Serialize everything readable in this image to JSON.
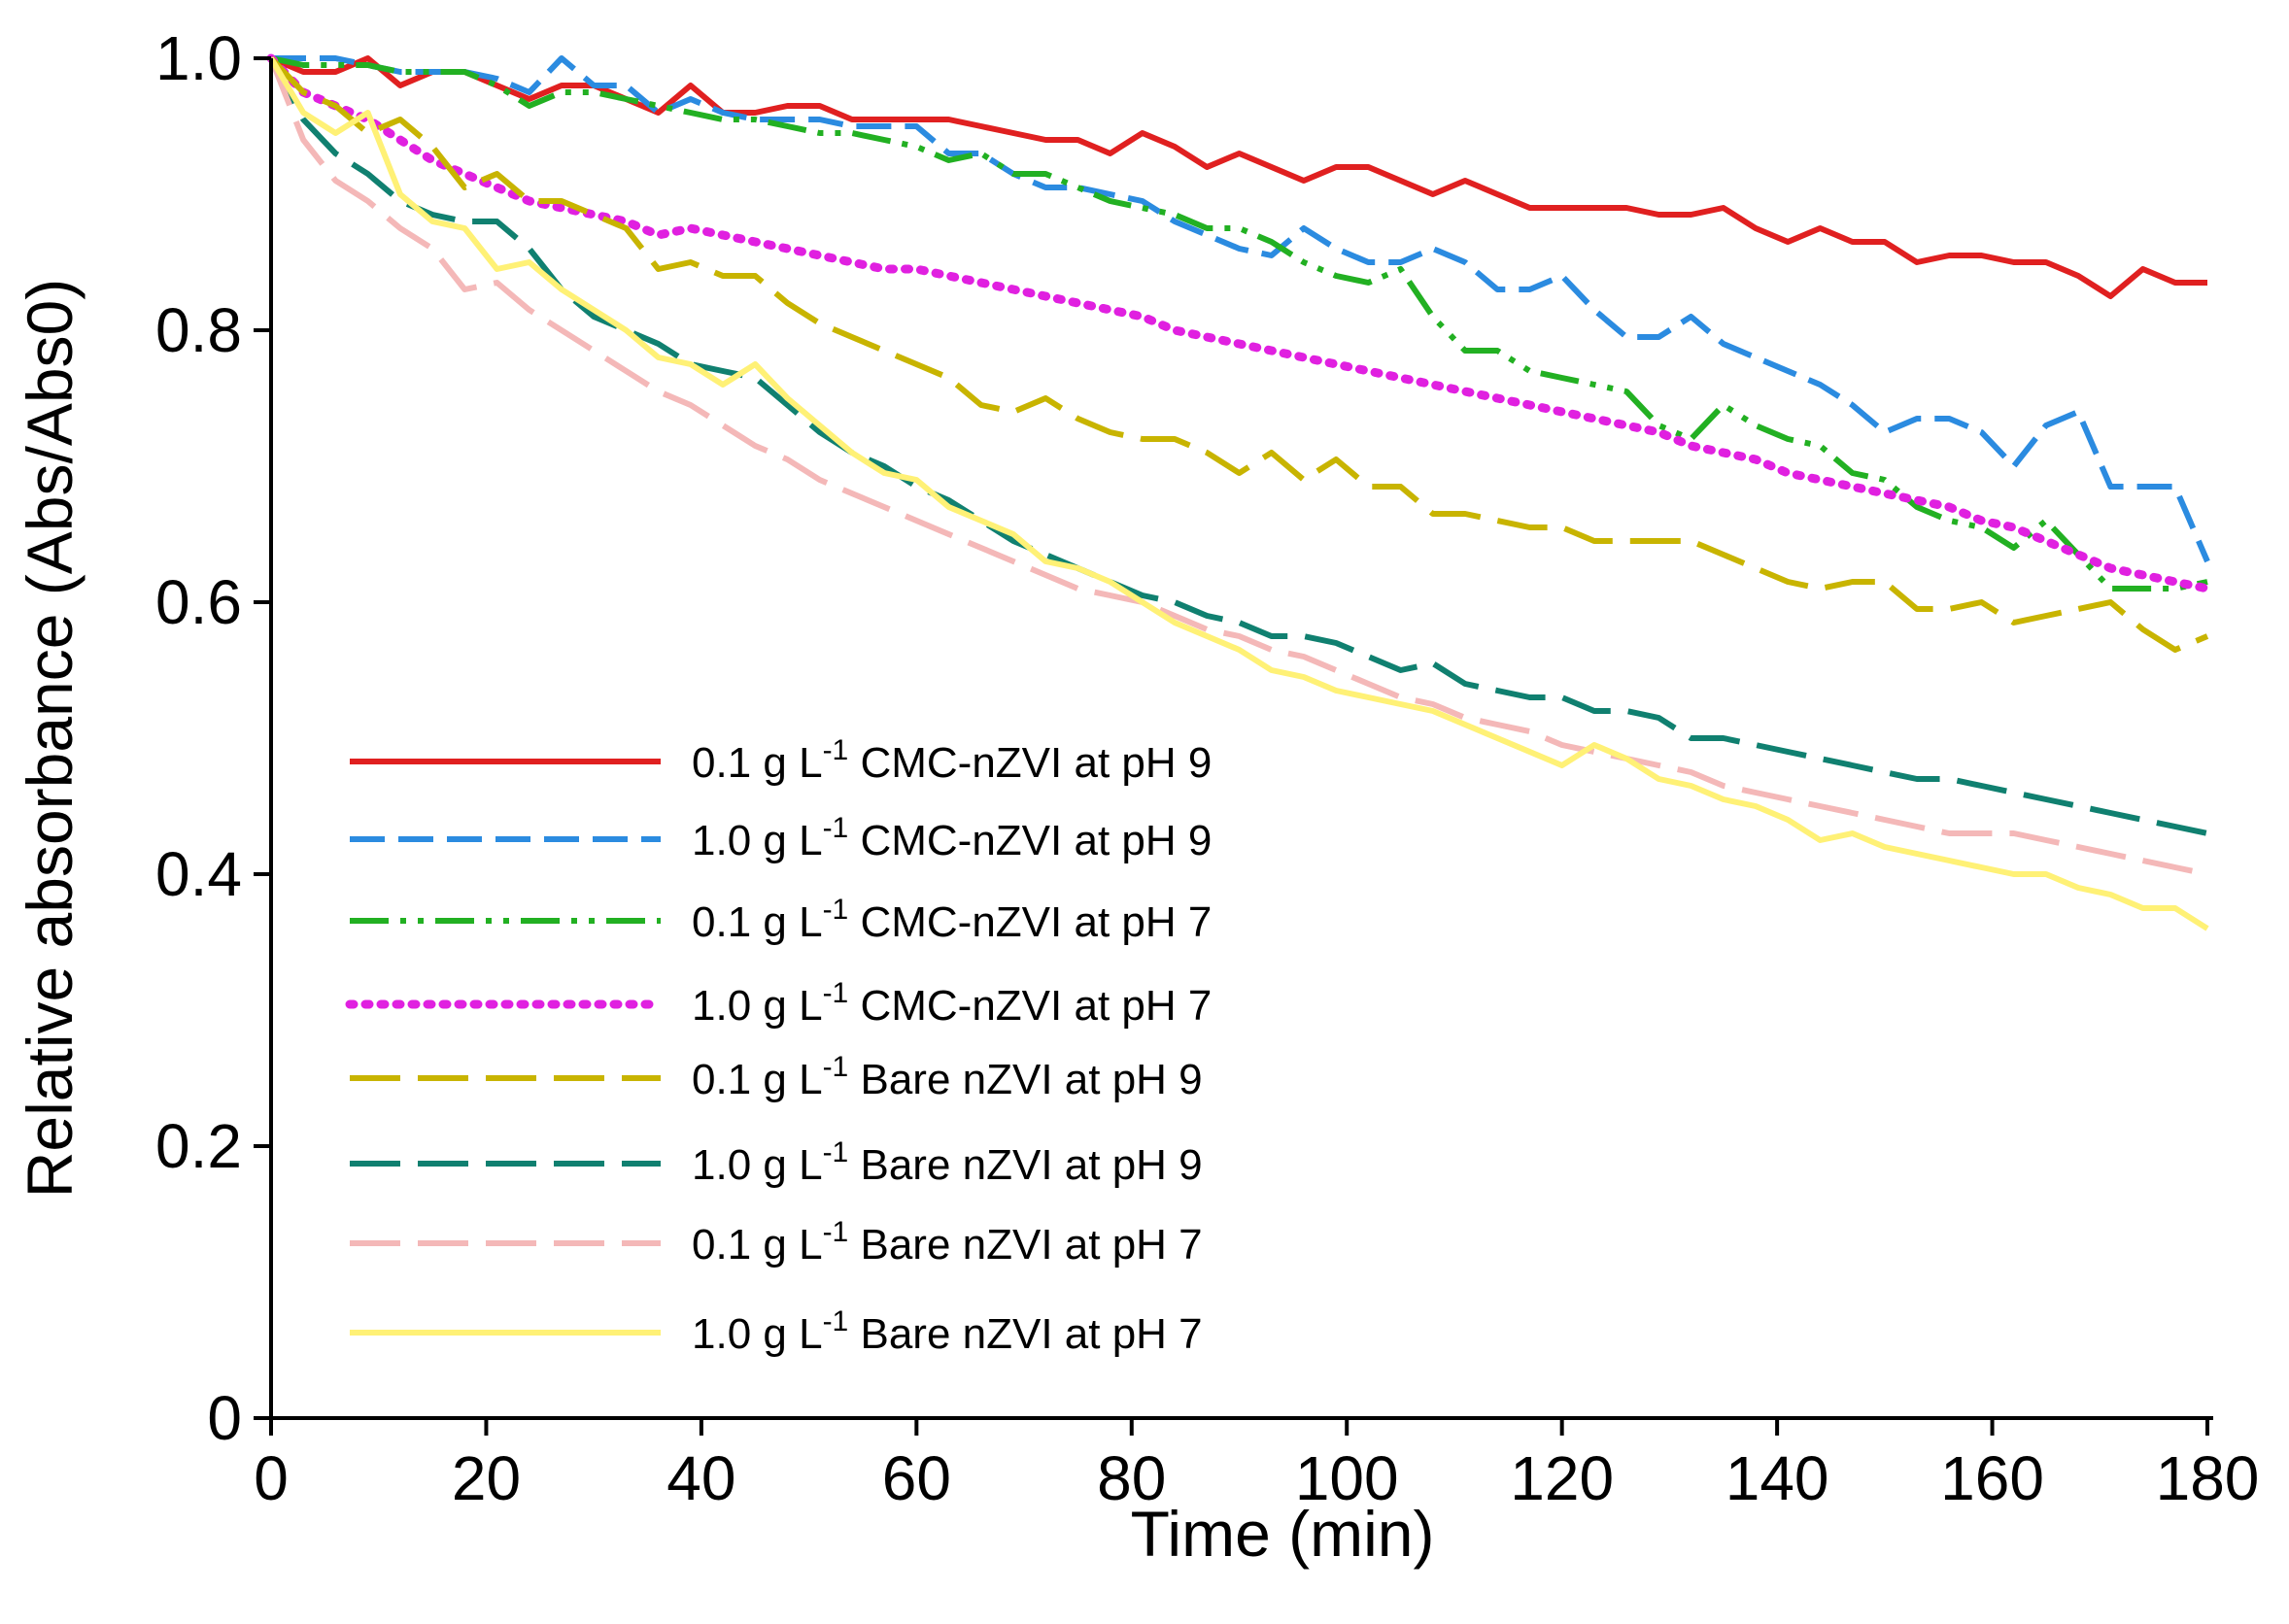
{
  "chart_data": {
    "type": "line",
    "title": "",
    "xlabel": "Time (min)",
    "ylabel": "Relative absorbance (Abs/Abs0)",
    "xlim": [
      0,
      180
    ],
    "ylim": [
      0,
      1.0
    ],
    "xticks": [
      0,
      20,
      40,
      60,
      80,
      100,
      120,
      140,
      160,
      180
    ],
    "xtick_labels": [
      "0",
      "20",
      "40",
      "60",
      "80",
      "100",
      "120",
      "140",
      "160",
      "180"
    ],
    "yticks": [
      0,
      0.2,
      0.4,
      0.6,
      0.8,
      1.0
    ],
    "ytick_labels": [
      "0",
      "0.2",
      "0.4",
      "0.6",
      "0.8",
      "1.0"
    ],
    "grid": false,
    "legend_position": "lower-left",
    "series": [
      {
        "name": "0.1 g L-1 CMC-nZVI at pH 9",
        "label_pre": "0.1 g L",
        "label_sup": "-1",
        "label_post": " CMC-nZVI at pH 9",
        "color": "#e02020",
        "dash": "solid",
        "x": [
          0,
          3,
          6,
          9,
          12,
          15,
          18,
          21,
          24,
          27,
          30,
          33,
          36,
          39,
          42,
          45,
          48,
          51,
          54,
          57,
          60,
          63,
          66,
          69,
          72,
          75,
          78,
          81,
          84,
          87,
          90,
          93,
          96,
          99,
          102,
          105,
          108,
          111,
          114,
          117,
          120,
          123,
          126,
          129,
          132,
          135,
          138,
          141,
          144,
          147,
          150,
          153,
          156,
          159,
          162,
          165,
          168,
          171,
          174,
          177,
          180
        ],
        "y": [
          1.0,
          0.99,
          0.99,
          1.0,
          0.98,
          0.99,
          0.99,
          0.98,
          0.97,
          0.98,
          0.98,
          0.97,
          0.96,
          0.98,
          0.96,
          0.96,
          0.965,
          0.965,
          0.955,
          0.955,
          0.955,
          0.955,
          0.95,
          0.945,
          0.94,
          0.94,
          0.93,
          0.945,
          0.935,
          0.92,
          0.93,
          0.92,
          0.91,
          0.92,
          0.92,
          0.91,
          0.9,
          0.91,
          0.9,
          0.89,
          0.89,
          0.89,
          0.89,
          0.885,
          0.885,
          0.89,
          0.875,
          0.865,
          0.875,
          0.865,
          0.865,
          0.85,
          0.855,
          0.855,
          0.85,
          0.85,
          0.84,
          0.825,
          0.845,
          0.835,
          0.835
        ]
      },
      {
        "name": "1.0 g L-1 CMC-nZVI at pH 9",
        "label_pre": "1.0 g L",
        "label_sup": "-1",
        "label_post": " CMC-nZVI at pH 9",
        "color": "#2b8be0",
        "dash": "dash",
        "x": [
          0,
          3,
          6,
          9,
          12,
          15,
          18,
          21,
          24,
          27,
          30,
          33,
          36,
          39,
          42,
          45,
          48,
          51,
          54,
          57,
          60,
          63,
          66,
          69,
          72,
          75,
          78,
          81,
          84,
          87,
          90,
          93,
          96,
          99,
          102,
          105,
          108,
          111,
          114,
          117,
          120,
          123,
          126,
          129,
          132,
          135,
          138,
          141,
          144,
          147,
          150,
          153,
          156,
          159,
          162,
          165,
          168,
          171,
          174,
          177,
          180
        ],
        "y": [
          1.0,
          1.0,
          1.0,
          0.995,
          0.99,
          0.99,
          0.99,
          0.985,
          0.975,
          1.0,
          0.98,
          0.98,
          0.96,
          0.97,
          0.96,
          0.955,
          0.955,
          0.955,
          0.95,
          0.95,
          0.95,
          0.93,
          0.93,
          0.915,
          0.905,
          0.905,
          0.9,
          0.895,
          0.88,
          0.87,
          0.86,
          0.855,
          0.875,
          0.86,
          0.85,
          0.85,
          0.86,
          0.85,
          0.83,
          0.83,
          0.84,
          0.815,
          0.795,
          0.795,
          0.81,
          0.79,
          0.78,
          0.77,
          0.76,
          0.745,
          0.725,
          0.735,
          0.735,
          0.725,
          0.7,
          0.73,
          0.74,
          0.685,
          0.685,
          0.685,
          0.63
        ]
      },
      {
        "name": "0.1 g L-1 CMC-nZVI at pH 7",
        "label_pre": "0.1 g L",
        "label_sup": "-1",
        "label_post": " CMC-nZVI at pH 7",
        "color": "#22b022",
        "dash": "dashdotdot",
        "x": [
          0,
          3,
          6,
          9,
          12,
          15,
          18,
          21,
          24,
          27,
          30,
          33,
          36,
          39,
          42,
          45,
          48,
          51,
          54,
          57,
          60,
          63,
          66,
          69,
          72,
          75,
          78,
          81,
          84,
          87,
          90,
          93,
          96,
          99,
          102,
          105,
          108,
          111,
          114,
          117,
          120,
          123,
          126,
          129,
          132,
          135,
          138,
          141,
          144,
          147,
          150,
          153,
          156,
          159,
          162,
          165,
          168,
          171,
          174,
          177,
          180
        ],
        "y": [
          1.0,
          0.995,
          0.995,
          0.995,
          0.99,
          0.99,
          0.99,
          0.98,
          0.965,
          0.975,
          0.975,
          0.97,
          0.965,
          0.96,
          0.955,
          0.955,
          0.95,
          0.945,
          0.945,
          0.94,
          0.935,
          0.925,
          0.93,
          0.915,
          0.915,
          0.905,
          0.895,
          0.89,
          0.885,
          0.875,
          0.875,
          0.865,
          0.85,
          0.84,
          0.835,
          0.845,
          0.81,
          0.785,
          0.785,
          0.77,
          0.765,
          0.76,
          0.755,
          0.73,
          0.72,
          0.745,
          0.73,
          0.72,
          0.715,
          0.695,
          0.69,
          0.67,
          0.66,
          0.655,
          0.64,
          0.66,
          0.635,
          0.61,
          0.61,
          0.61,
          0.615
        ]
      },
      {
        "name": "1.0 g L-1 CMC-nZVI at pH 7",
        "label_pre": "1.0 g L",
        "label_sup": "-1",
        "label_post": " CMC-nZVI at pH 7",
        "color": "#e020e0",
        "dash": "dot",
        "x": [
          0,
          3,
          6,
          9,
          12,
          15,
          18,
          21,
          24,
          27,
          30,
          33,
          36,
          39,
          42,
          45,
          48,
          51,
          54,
          57,
          60,
          63,
          66,
          69,
          72,
          75,
          78,
          81,
          84,
          87,
          90,
          93,
          96,
          99,
          102,
          105,
          108,
          111,
          114,
          117,
          120,
          123,
          126,
          129,
          132,
          135,
          138,
          141,
          144,
          147,
          150,
          153,
          156,
          159,
          162,
          165,
          168,
          171,
          174,
          177,
          180
        ],
        "y": [
          1.0,
          0.975,
          0.965,
          0.955,
          0.94,
          0.925,
          0.915,
          0.905,
          0.895,
          0.89,
          0.885,
          0.88,
          0.87,
          0.875,
          0.87,
          0.865,
          0.86,
          0.855,
          0.85,
          0.845,
          0.845,
          0.84,
          0.835,
          0.83,
          0.825,
          0.82,
          0.815,
          0.81,
          0.8,
          0.795,
          0.79,
          0.785,
          0.78,
          0.775,
          0.77,
          0.765,
          0.76,
          0.755,
          0.75,
          0.745,
          0.74,
          0.735,
          0.73,
          0.725,
          0.715,
          0.71,
          0.705,
          0.695,
          0.69,
          0.685,
          0.68,
          0.675,
          0.67,
          0.66,
          0.655,
          0.645,
          0.635,
          0.625,
          0.62,
          0.615,
          0.61
        ]
      },
      {
        "name": "0.1 g L-1 Bare nZVI at pH 9",
        "label_pre": "0.1 g L",
        "label_sup": "-1",
        "label_post": " Bare nZVI at pH 9",
        "color": "#c8b400",
        "dash": "longdash",
        "x": [
          0,
          3,
          6,
          9,
          12,
          15,
          18,
          21,
          24,
          27,
          30,
          33,
          36,
          39,
          42,
          45,
          48,
          51,
          54,
          57,
          60,
          63,
          66,
          69,
          72,
          75,
          78,
          81,
          84,
          87,
          90,
          93,
          96,
          99,
          102,
          105,
          108,
          111,
          114,
          117,
          120,
          123,
          126,
          129,
          132,
          135,
          138,
          141,
          144,
          147,
          150,
          153,
          156,
          159,
          162,
          165,
          168,
          171,
          174,
          177,
          180
        ],
        "y": [
          1.0,
          0.975,
          0.965,
          0.945,
          0.955,
          0.935,
          0.905,
          0.915,
          0.895,
          0.895,
          0.885,
          0.875,
          0.845,
          0.85,
          0.84,
          0.84,
          0.82,
          0.805,
          0.795,
          0.785,
          0.775,
          0.765,
          0.745,
          0.74,
          0.75,
          0.735,
          0.725,
          0.72,
          0.72,
          0.71,
          0.695,
          0.71,
          0.69,
          0.705,
          0.685,
          0.685,
          0.665,
          0.665,
          0.66,
          0.655,
          0.655,
          0.645,
          0.645,
          0.645,
          0.645,
          0.635,
          0.625,
          0.615,
          0.61,
          0.615,
          0.615,
          0.595,
          0.595,
          0.6,
          0.585,
          0.59,
          0.595,
          0.6,
          0.58,
          0.565,
          0.575
        ]
      },
      {
        "name": "1.0 g L-1 Bare nZVI at pH 9",
        "label_pre": "1.0 g L",
        "label_sup": "-1",
        "label_post": " Bare nZVI at pH 9",
        "color": "#108070",
        "dash": "longdash",
        "x": [
          0,
          3,
          6,
          9,
          12,
          15,
          18,
          21,
          24,
          27,
          30,
          33,
          36,
          39,
          42,
          45,
          48,
          51,
          54,
          57,
          60,
          63,
          66,
          69,
          72,
          75,
          78,
          81,
          84,
          87,
          90,
          93,
          96,
          99,
          102,
          105,
          108,
          111,
          114,
          117,
          120,
          123,
          126,
          129,
          132,
          135,
          138,
          141,
          144,
          147,
          150,
          153,
          156,
          159,
          162,
          165,
          168,
          171,
          174,
          177,
          180
        ],
        "y": [
          1.0,
          0.955,
          0.93,
          0.915,
          0.895,
          0.885,
          0.88,
          0.88,
          0.86,
          0.83,
          0.81,
          0.8,
          0.79,
          0.775,
          0.77,
          0.765,
          0.745,
          0.725,
          0.71,
          0.7,
          0.685,
          0.675,
          0.66,
          0.645,
          0.635,
          0.625,
          0.615,
          0.605,
          0.6,
          0.59,
          0.585,
          0.575,
          0.575,
          0.57,
          0.56,
          0.55,
          0.555,
          0.54,
          0.535,
          0.53,
          0.53,
          0.52,
          0.52,
          0.515,
          0.5,
          0.5,
          0.495,
          0.49,
          0.485,
          0.48,
          0.475,
          0.47,
          0.47,
          0.465,
          0.46,
          0.455,
          0.45,
          0.445,
          0.44,
          0.435,
          0.43
        ]
      },
      {
        "name": "0.1 g L-1 Bare nZVI at pH 7",
        "label_pre": "0.1 g L",
        "label_sup": "-1",
        "label_post": " Bare nZVI at pH 7",
        "color": "#f4b8b8",
        "dash": "longdash",
        "x": [
          0,
          3,
          6,
          9,
          12,
          15,
          18,
          21,
          24,
          27,
          30,
          33,
          36,
          39,
          42,
          45,
          48,
          51,
          54,
          57,
          60,
          63,
          66,
          69,
          72,
          75,
          78,
          81,
          84,
          87,
          90,
          93,
          96,
          99,
          102,
          105,
          108,
          111,
          114,
          117,
          120,
          123,
          126,
          129,
          132,
          135,
          138,
          141,
          144,
          147,
          150,
          153,
          156,
          159,
          162,
          165,
          168,
          171,
          174,
          177,
          180
        ],
        "y": [
          1.0,
          0.94,
          0.91,
          0.895,
          0.875,
          0.86,
          0.83,
          0.835,
          0.815,
          0.8,
          0.785,
          0.77,
          0.755,
          0.745,
          0.73,
          0.715,
          0.705,
          0.69,
          0.68,
          0.67,
          0.66,
          0.65,
          0.64,
          0.63,
          0.62,
          0.61,
          0.605,
          0.6,
          0.59,
          0.58,
          0.575,
          0.565,
          0.56,
          0.55,
          0.54,
          0.53,
          0.525,
          0.515,
          0.51,
          0.505,
          0.495,
          0.49,
          0.485,
          0.48,
          0.475,
          0.465,
          0.46,
          0.455,
          0.45,
          0.445,
          0.44,
          0.435,
          0.43,
          0.43,
          0.43,
          0.425,
          0.42,
          0.415,
          0.41,
          0.405,
          0.4
        ]
      },
      {
        "name": "1.0 g L-1 Bare nZVI at pH 7",
        "label_pre": "1.0 g L",
        "label_sup": "-1",
        "label_post": " Bare nZVI at pH 7",
        "color": "#fff176",
        "dash": "solid",
        "x": [
          0,
          3,
          6,
          9,
          12,
          15,
          18,
          21,
          24,
          27,
          30,
          33,
          36,
          39,
          42,
          45,
          48,
          51,
          54,
          57,
          60,
          63,
          66,
          69,
          72,
          75,
          78,
          81,
          84,
          87,
          90,
          93,
          96,
          99,
          102,
          105,
          108,
          111,
          114,
          117,
          120,
          123,
          126,
          129,
          132,
          135,
          138,
          141,
          144,
          147,
          150,
          153,
          156,
          159,
          162,
          165,
          168,
          171,
          174,
          177,
          180
        ],
        "y": [
          1.0,
          0.96,
          0.945,
          0.96,
          0.9,
          0.88,
          0.875,
          0.845,
          0.85,
          0.83,
          0.815,
          0.8,
          0.78,
          0.775,
          0.76,
          0.775,
          0.75,
          0.73,
          0.71,
          0.695,
          0.69,
          0.67,
          0.66,
          0.65,
          0.63,
          0.625,
          0.615,
          0.6,
          0.585,
          0.575,
          0.565,
          0.55,
          0.545,
          0.535,
          0.53,
          0.525,
          0.52,
          0.51,
          0.5,
          0.49,
          0.48,
          0.495,
          0.485,
          0.47,
          0.465,
          0.455,
          0.45,
          0.44,
          0.425,
          0.43,
          0.42,
          0.415,
          0.41,
          0.405,
          0.4,
          0.4,
          0.39,
          0.385,
          0.375,
          0.375,
          0.36
        ]
      }
    ]
  }
}
